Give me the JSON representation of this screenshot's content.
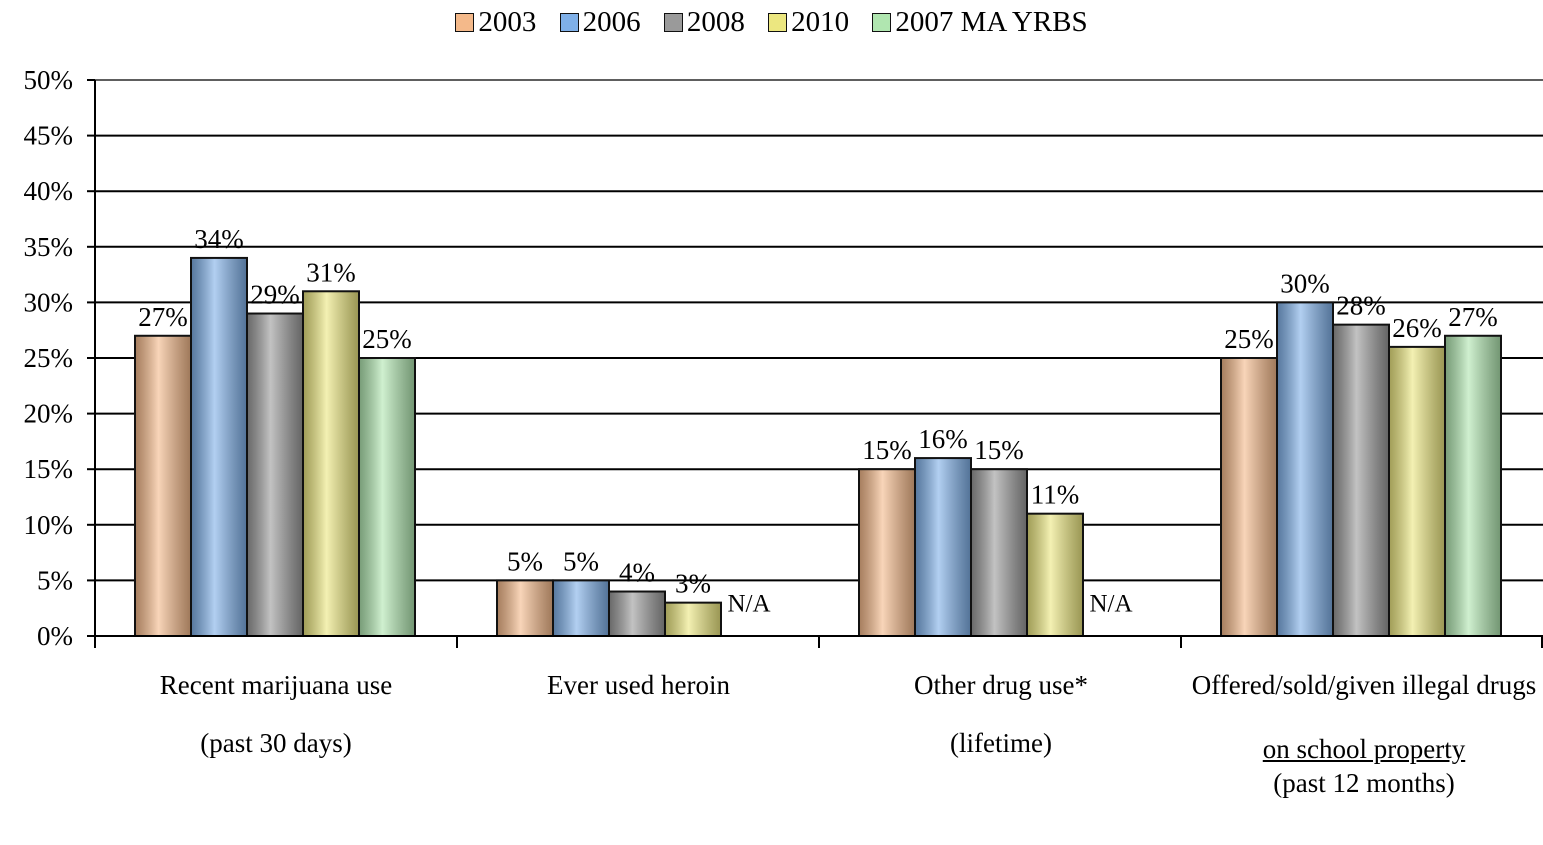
{
  "chart_data": {
    "type": "bar",
    "ylim": [
      0,
      50
    ],
    "yticks": [
      "0%",
      "5%",
      "10%",
      "15%",
      "20%",
      "25%",
      "30%",
      "35%",
      "40%",
      "45%",
      "50%"
    ],
    "legend_placement": "top",
    "grid": true,
    "categories": [
      {
        "line1": "Recent marijuana use",
        "line2": "(past 30 days)",
        "line3": "",
        "line4": ""
      },
      {
        "line1": "Ever used heroin",
        "line2": "",
        "line3": "",
        "line4": ""
      },
      {
        "line1": "Other drug use*",
        "line2": "(lifetime)",
        "line3": "",
        "line4": ""
      },
      {
        "line1": "Offered/sold/given illegal drugs",
        "line2": "",
        "line3": "on school property",
        "line4": "(past 12 months)"
      }
    ],
    "series": [
      {
        "name": "2003",
        "color": "#f4b98a",
        "values": [
          27,
          5,
          15,
          25
        ],
        "labels": [
          "27%",
          "5%",
          "15%",
          "25%"
        ]
      },
      {
        "name": "2006",
        "color": "#7fb0e8",
        "values": [
          34,
          5,
          16,
          30
        ],
        "labels": [
          "34%",
          "5%",
          "16%",
          "30%"
        ]
      },
      {
        "name": "2008",
        "color": "#9a9a9a",
        "values": [
          29,
          4,
          15,
          28
        ],
        "labels": [
          "29%",
          "4%",
          "15%",
          "28%"
        ]
      },
      {
        "name": "2010",
        "color": "#ece780",
        "values": [
          31,
          3,
          11,
          26
        ],
        "labels": [
          "31%",
          "3%",
          "11%",
          "26%"
        ]
      },
      {
        "name": "2007 MA YRBS",
        "color": "#b0e6b0",
        "values": [
          25,
          null,
          null,
          27
        ],
        "labels": [
          "25%",
          "",
          "",
          "27%"
        ]
      }
    ],
    "na_text": "N/A"
  }
}
